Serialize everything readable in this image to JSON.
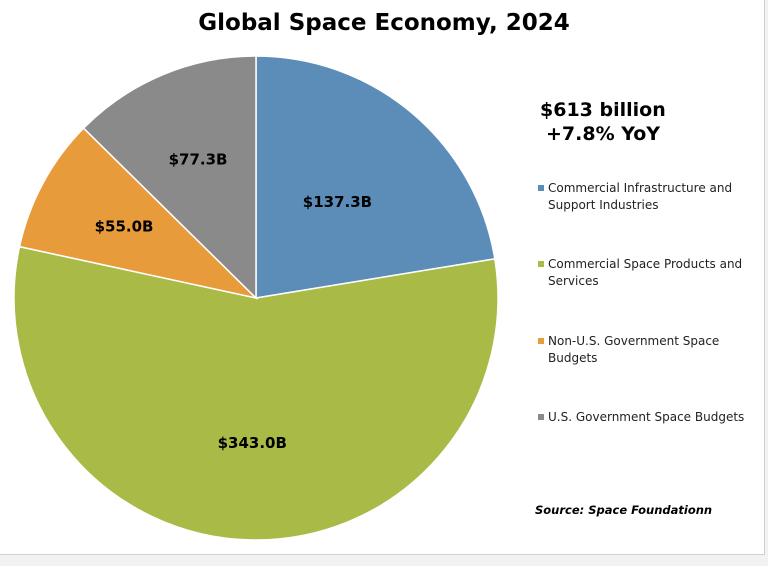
{
  "chart_data": {
    "type": "pie",
    "title": "Global Space Economy, 2024",
    "start_angle": "12 o'clock",
    "direction": "clockwise",
    "legend_position": "right",
    "slices": [
      {
        "name": "Commercial Infrastructure and Support Industries",
        "value": 137.3,
        "label": "$137.3B",
        "color": "#5b8db8"
      },
      {
        "name": "Commercial Space Products and Services",
        "value": 343.0,
        "label": "$343.0B",
        "color": "#a9ba47"
      },
      {
        "name": "Non-U.S. Government Space Budgets",
        "value": 55.0,
        "label": "$55.0B",
        "color": "#e89b3b"
      },
      {
        "name": "U.S. Government Space Budgets",
        "value": 77.3,
        "label": "$77.3B",
        "color": "#8a8a8a"
      }
    ],
    "annotations": {
      "total": "$613 billion",
      "growth": "+7.8% YoY",
      "source": "Source: Space Foundationn"
    }
  }
}
